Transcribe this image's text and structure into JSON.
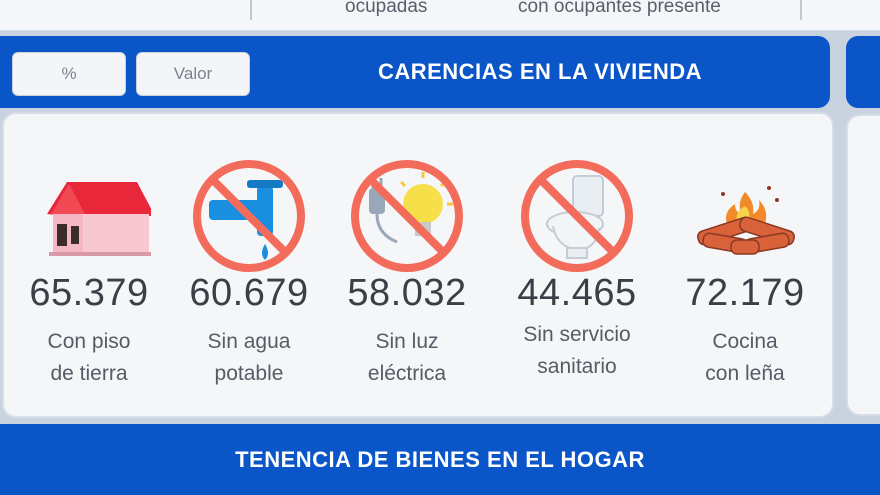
{
  "top_strip": {
    "left_text": "ocupadas",
    "right_text": "con ocupantes presente"
  },
  "header": {
    "buttons": {
      "percent": "%",
      "value": "Valor"
    },
    "title": "CARENCIAS EN LA VIVIENDA"
  },
  "items": [
    {
      "icon": "house-icon",
      "value": "65.379",
      "label_line1": "Con piso",
      "label_line2": "de tierra"
    },
    {
      "icon": "no-water-tap-icon",
      "value": "60.679",
      "label_line1": "Sin agua",
      "label_line2": "potable"
    },
    {
      "icon": "no-electricity-bulb-icon",
      "value": "58.032",
      "label_line1": "Sin luz",
      "label_line2": "eléctrica"
    },
    {
      "icon": "no-toilet-icon",
      "value": "44.465",
      "label_line1": "Sin servicio",
      "label_line2": "sanitario"
    },
    {
      "icon": "firewood-icon",
      "value": "72.179",
      "label_line1": "Cocina",
      "label_line2": "con leña"
    }
  ],
  "bottom": {
    "title": "TENENCIA DE BIENES EN EL HOGAR"
  },
  "colors": {
    "brand_blue": "#0a56c9",
    "prohibit_red": "#f26b5b",
    "house_red": "#e8283a",
    "water_blue": "#1a8fe0",
    "bulb_yellow": "#f6e04a"
  }
}
